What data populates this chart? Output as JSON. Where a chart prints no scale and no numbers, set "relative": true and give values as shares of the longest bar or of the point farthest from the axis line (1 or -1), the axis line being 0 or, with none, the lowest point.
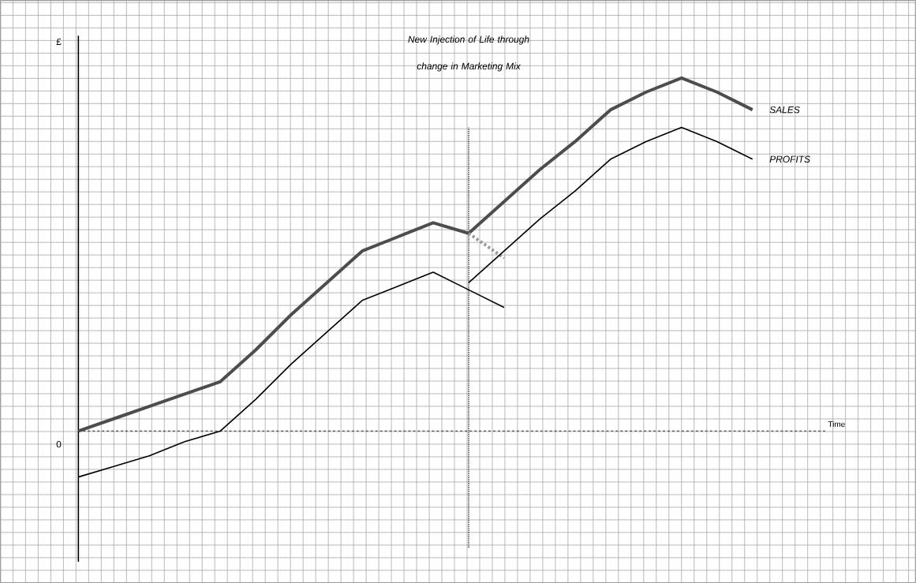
{
  "chart_data": {
    "type": "line",
    "relative": true,
    "ylabel": "£",
    "grid": true,
    "marker": "none",
    "categories": [
      null,
      null,
      null,
      null,
      null,
      null,
      null,
      null,
      null,
      null,
      null,
      null,
      null,
      null,
      null,
      null,
      null,
      null,
      null,
      null
    ],
    "series": [
      {
        "name": "SALES",
        "color": "#4d4d4d",
        "values": [
          0.0,
          0.035,
          0.07,
          0.105,
          0.14,
          0.23,
          0.33,
          0.42,
          0.51,
          0.55,
          0.59,
          0.56,
          0.65,
          0.74,
          0.82,
          0.91,
          0.96,
          1,
          0.96,
          0.91
        ]
      },
      {
        "color": "#999999",
        "line_style": "dashed",
        "values": [
          null,
          null,
          null,
          null,
          null,
          null,
          null,
          null,
          null,
          null,
          null,
          0.56,
          0.49,
          null,
          null,
          null,
          null,
          null,
          null,
          null
        ]
      },
      {
        "name": "PROFITS",
        "color": "#000000",
        "values": [
          null,
          null,
          null,
          null,
          null,
          null,
          null,
          null,
          null,
          null,
          null,
          0.42,
          0.51,
          0.6,
          0.68,
          0.77,
          0.82,
          0.86,
          0.82,
          0.77
        ]
      },
      {
        "color": "#000000",
        "values": [
          -0.13,
          -0.1,
          -0.07,
          -0.03,
          0.0,
          0.09,
          0.19,
          0.28,
          0.37,
          0.41,
          0.45,
          0.4,
          0.35,
          null,
          null,
          null,
          null,
          null,
          null,
          null
        ]
      }
    ],
    "ref_lines": [
      {
        "axis": "y",
        "value": 0,
        "label": "Time",
        "line_style": "dashed",
        "color": "#4c4c4c"
      }
    ],
    "annotations": [
      "0",
      "New Injection of Life through change in Marketing Mix"
    ]
  }
}
